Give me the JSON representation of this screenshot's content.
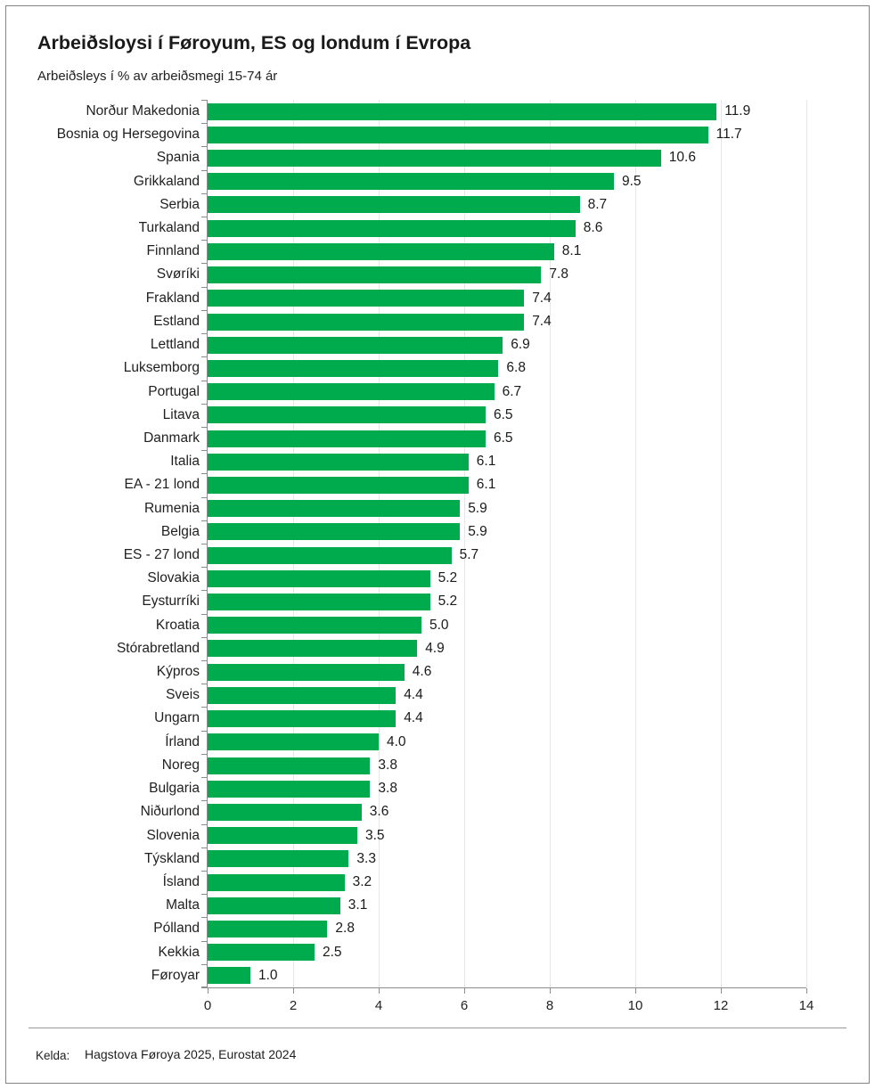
{
  "chart_data": {
    "type": "bar",
    "orientation": "horizontal",
    "title": "Arbeiðsloysi í Føroyum, ES og londum í Evropa",
    "subtitle": "Arbeiðsleys í % av arbeiðsmegi 15-74 ár",
    "categories": [
      "Norður Makedonia",
      "Bosnia og Hersegovina",
      "Spania",
      "Grikkaland",
      "Serbia",
      "Turkaland",
      "Finnland",
      "Svøríki",
      "Frakland",
      "Estland",
      "Lettland",
      "Luksemborg",
      "Portugal",
      "Litava",
      "Danmark",
      "Italia",
      "EA - 21 lond",
      "Rumenia",
      "Belgia",
      "ES - 27 lond",
      "Slovakia",
      "Eysturríki",
      "Kroatia",
      "Stórabretland",
      "Kýpros",
      "Sveis",
      "Ungarn",
      "Írland",
      "Noreg",
      "Bulgaria",
      "Niðurlond",
      "Slovenia",
      "Týskland",
      "Ísland",
      "Malta",
      "Pólland",
      "Kekkia",
      "Føroyar"
    ],
    "values": [
      11.9,
      11.7,
      10.6,
      9.5,
      8.7,
      8.6,
      8.1,
      7.8,
      7.4,
      7.4,
      6.9,
      6.8,
      6.7,
      6.5,
      6.5,
      6.1,
      6.1,
      5.9,
      5.9,
      5.7,
      5.2,
      5.2,
      5.0,
      4.9,
      4.6,
      4.4,
      4.4,
      4.0,
      3.8,
      3.8,
      3.6,
      3.5,
      3.3,
      3.2,
      3.1,
      2.8,
      2.5,
      1.0
    ],
    "value_label_decimals": 1,
    "xlim": [
      0,
      14
    ],
    "xticks": [
      0,
      2,
      4,
      6,
      8,
      10,
      12,
      14
    ],
    "grid": true,
    "legend": false,
    "bar_color": "#00AB4E"
  },
  "footer": {
    "source_label": "Kelda:",
    "source_text": "Hagstova Føroya 2025, Eurostat 2024"
  }
}
